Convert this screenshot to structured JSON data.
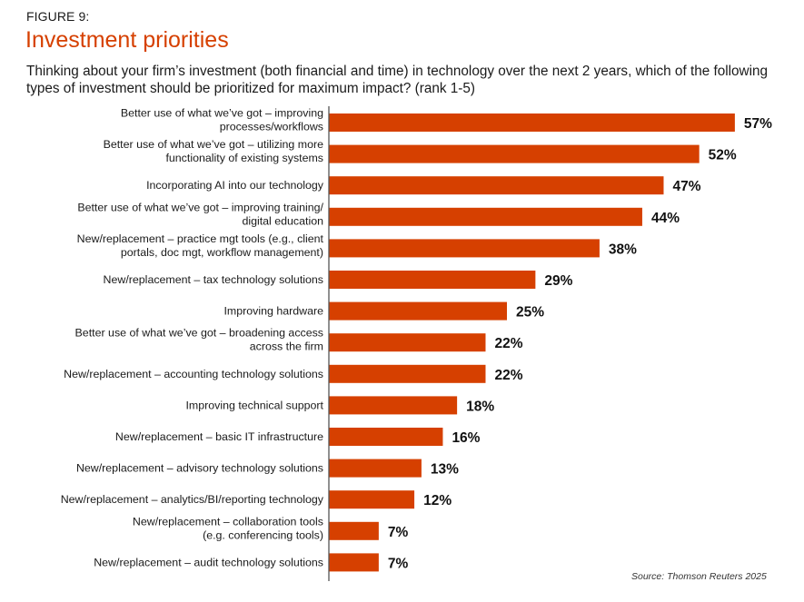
{
  "figure_label": "FIGURE 9:",
  "title": "Investment priorities",
  "subtitle": "Thinking about your firm’s investment (both financial and time) in technology over the next 2 years, which of the following types of investment should be prioritized for maximum impact? (rank 1-5)",
  "source": "Source: Thomson Reuters 2025",
  "colors": {
    "bar": "#d64000",
    "title": "#d64000",
    "axis": "#555555"
  },
  "chart_data": {
    "type": "bar",
    "orientation": "horizontal",
    "title": "Investment priorities",
    "xlabel": "",
    "ylabel": "",
    "xlim": [
      0,
      60
    ],
    "grid": false,
    "value_suffix": "%",
    "categories": [
      [
        "Better use of what we’ve got – improving",
        "processes/workflows"
      ],
      [
        "Better use of what we’ve got – utilizing more",
        "functionality of existing systems"
      ],
      [
        "Incorporating AI into our technology"
      ],
      [
        "Better use of what we’ve got – improving training/",
        "digital education"
      ],
      [
        "New/replacement – practice mgt tools (e.g., client",
        "portals, doc mgt, workflow management)"
      ],
      [
        "New/replacement – tax technology solutions"
      ],
      [
        "Improving hardware"
      ],
      [
        "Better use of what we’ve got – broadening access",
        "across the firm"
      ],
      [
        "New/replacement – accounting technology solutions"
      ],
      [
        "Improving technical support"
      ],
      [
        "New/replacement – basic IT infrastructure"
      ],
      [
        "New/replacement – advisory technology solutions"
      ],
      [
        "New/replacement – analytics/BI/reporting technology"
      ],
      [
        "New/replacement – collaboration tools",
        "(e.g. conferencing tools)"
      ],
      [
        "New/replacement – audit technology solutions"
      ]
    ],
    "values": [
      57,
      52,
      47,
      44,
      38,
      29,
      25,
      22,
      22,
      18,
      16,
      13,
      12,
      7,
      7
    ],
    "data_labels": [
      "57%",
      "52%",
      "47%",
      "44%",
      "38%",
      "29%",
      "25%",
      "22%",
      "22%",
      "18%",
      "16%",
      "13%",
      "12%",
      "7%",
      "7%"
    ]
  }
}
